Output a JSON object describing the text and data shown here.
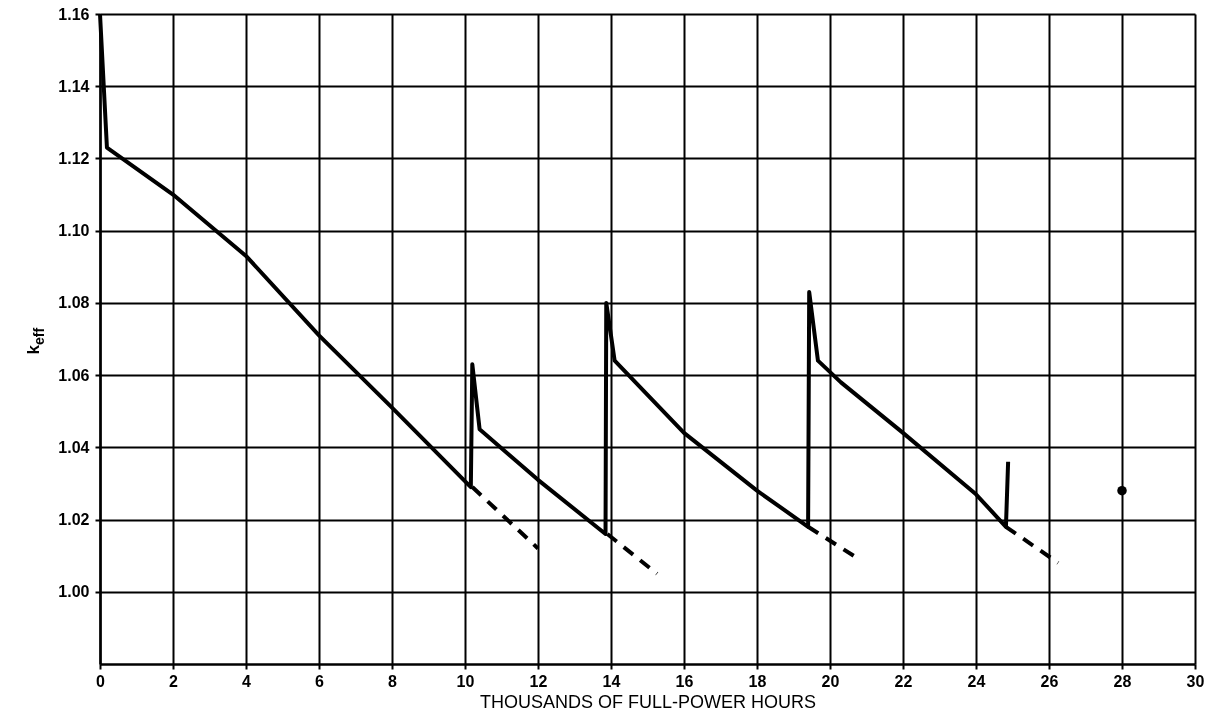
{
  "chart_data": {
    "type": "line",
    "xlabel": "THOUSANDS OF FULL-POWER HOURS",
    "ylabel": "k$_{eff}$",
    "xlim": [
      0,
      30
    ],
    "ylim": [
      0.98,
      1.16
    ],
    "xticks": [
      0,
      2,
      4,
      6,
      8,
      10,
      12,
      14,
      16,
      18,
      20,
      22,
      24,
      26,
      28,
      30
    ],
    "yticks": [
      {
        "value": 1.0,
        "label": "1.00"
      },
      {
        "value": 1.02,
        "label": "1.02"
      },
      {
        "value": 1.04,
        "label": "1.04"
      },
      {
        "value": 1.06,
        "label": "1.06"
      },
      {
        "value": 1.08,
        "label": "1.08"
      },
      {
        "value": 1.1,
        "label": "1.10"
      },
      {
        "value": 1.12,
        "label": "1.12"
      },
      {
        "value": 1.14,
        "label": "1.14"
      },
      {
        "value": 1.16,
        "label": "1.16"
      }
    ],
    "grid": true,
    "series": [
      {
        "color": "#000000",
        "line_style": "solid",
        "x": [
          0,
          0.19,
          2,
          4,
          6,
          8,
          10.16,
          10.2,
          10.4,
          12,
          13.85,
          13.87,
          14.1,
          16,
          18,
          19.4,
          19.43,
          19.67,
          20.3,
          22,
          24,
          24.82,
          24.88
        ],
        "values": [
          1.16,
          1.123,
          1.11,
          1.093,
          1.071,
          1.051,
          1.029,
          1.063,
          1.045,
          1.031,
          1.016,
          1.08,
          1.064,
          1.044,
          1.028,
          1.018,
          1.083,
          1.064,
          1.058,
          1.044,
          1.027,
          1.018,
          1.036
        ]
      },
      {
        "color": "#000000",
        "line_style": "dashed",
        "x": [
          10.2,
          12.0
        ],
        "values": [
          1.029,
          1.012
        ]
      },
      {
        "color": "#000000",
        "line_style": "dashed",
        "x": [
          13.9,
          15.26
        ],
        "values": [
          1.016,
          1.005
        ]
      },
      {
        "color": "#000000",
        "line_style": "dashed",
        "x": [
          19.4,
          20.8
        ],
        "values": [
          1.018,
          1.009
        ]
      },
      {
        "color": "#000000",
        "line_style": "dashed",
        "x": [
          24.82,
          26.25
        ],
        "values": [
          1.018,
          1.008
        ]
      },
      {
        "type": "scatter",
        "marker": "circle",
        "color": "#000000",
        "x": [
          28.0
        ],
        "values": [
          1.028
        ]
      }
    ]
  }
}
